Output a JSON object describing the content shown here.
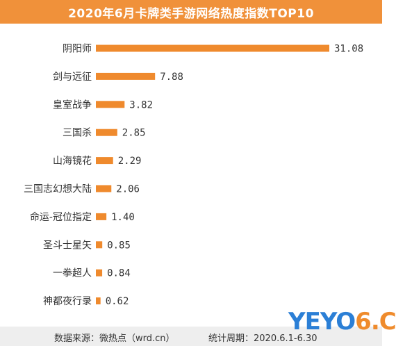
{
  "title": "2020年6月卡牌类手游网络热度指数TOP10",
  "colors": {
    "accent": "#f0913a",
    "bar": "#ef8a2d",
    "footer_bg": "#eeeeee"
  },
  "chart_data": {
    "type": "bar",
    "orientation": "horizontal",
    "categories": [
      "阴阳师",
      "剑与远征",
      "皇室战争",
      "三国杀",
      "山海镜花",
      "三国志幻想大陆",
      "命运-冠位指定",
      "圣斗士星矢",
      "一拳超人",
      "神都夜行录"
    ],
    "values": [
      31.08,
      7.88,
      3.82,
      2.85,
      2.29,
      2.06,
      1.4,
      0.85,
      0.84,
      0.62
    ],
    "value_labels": [
      "31.08",
      "7.88",
      "3.82",
      "2.85",
      "2.29",
      "2.06",
      "1.40",
      "0.85",
      "0.84",
      "0.62"
    ],
    "xlim": [
      0,
      31.08
    ],
    "grid": false,
    "legend": "none"
  },
  "footer": {
    "source": "数据来源：微热点（wrd.cn）",
    "period": "统计周期：2020.6.1-6.30"
  },
  "logo": {
    "main": "YEYO",
    "accent": "6.C"
  }
}
